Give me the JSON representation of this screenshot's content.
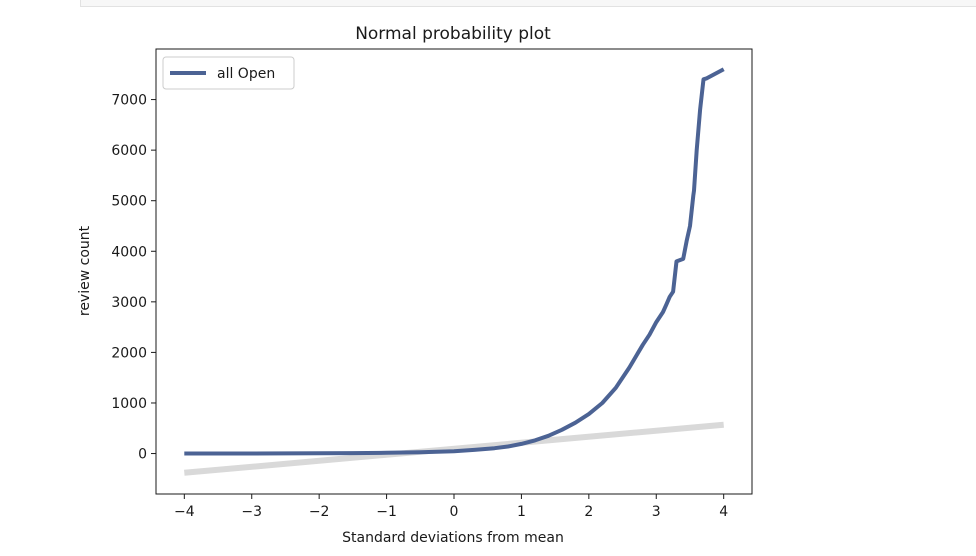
{
  "chart_data": {
    "type": "line",
    "title": "Normal probability plot",
    "xlabel": "Standard deviations from mean",
    "ylabel": "review count",
    "xlim": [
      -4.42,
      4.42
    ],
    "ylim": [
      -800,
      8000
    ],
    "x_ticks": [
      -4,
      -3,
      -2,
      -1,
      0,
      1,
      2,
      3,
      4
    ],
    "x_tick_labels": [
      "−4",
      "−3",
      "−2",
      "−1",
      "0",
      "1",
      "2",
      "3",
      "4"
    ],
    "y_ticks": [
      0,
      1000,
      2000,
      3000,
      4000,
      5000,
      6000,
      7000
    ],
    "y_tick_labels": [
      "0",
      "1000",
      "2000",
      "3000",
      "4000",
      "5000",
      "6000",
      "7000"
    ],
    "grid": false,
    "legend_position": "upper-left",
    "series": [
      {
        "name": "",
        "role": "model",
        "color": "#d9d9d9",
        "x": [
          -4,
          4
        ],
        "y": [
          -380,
          570
        ]
      },
      {
        "name": "all Open",
        "role": "data",
        "color": "#4c6394",
        "x": [
          -4,
          -3.5,
          -3,
          -2.5,
          -2,
          -1.5,
          -1,
          -0.5,
          0,
          0.3,
          0.6,
          0.8,
          1.0,
          1.2,
          1.4,
          1.6,
          1.8,
          2.0,
          2.2,
          2.4,
          2.6,
          2.8,
          2.9,
          3.0,
          3.1,
          3.15,
          3.2,
          3.25,
          3.3,
          3.4,
          3.45,
          3.5,
          3.55,
          3.56,
          3.6,
          3.65,
          3.7,
          3.75,
          4.0
        ],
        "y": [
          0,
          0,
          1,
          2,
          4,
          8,
          14,
          25,
          45,
          72,
          105,
          140,
          190,
          260,
          350,
          470,
          610,
          780,
          1000,
          1300,
          1700,
          2150,
          2350,
          2600,
          2800,
          2950,
          3100,
          3200,
          3800,
          3850,
          4200,
          4500,
          5100,
          5200,
          6000,
          6800,
          7400,
          7420,
          7600
        ]
      }
    ]
  }
}
